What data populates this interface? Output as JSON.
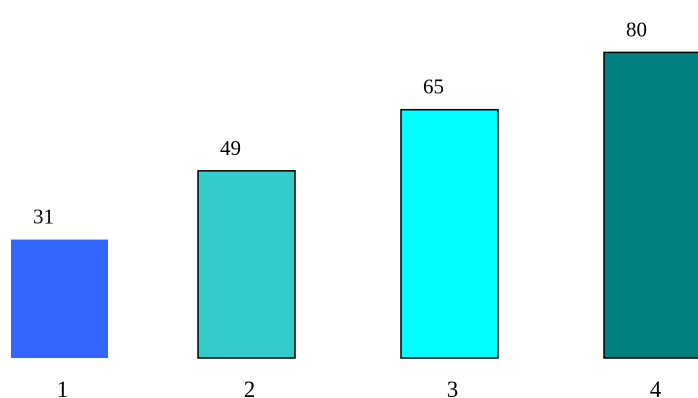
{
  "chart_data": {
    "type": "bar",
    "categories": [
      "1",
      "2",
      "3",
      "4"
    ],
    "values": [
      31,
      49,
      65,
      80
    ],
    "data_labels": [
      "31",
      "49",
      "65",
      "80"
    ],
    "colors": [
      "#3366ff",
      "#33cccc",
      "#00ffff",
      "#008080"
    ],
    "outlined": [
      false,
      true,
      true,
      true
    ],
    "ylim": [
      0,
      80
    ],
    "grid": false,
    "axes_visible": false
  }
}
